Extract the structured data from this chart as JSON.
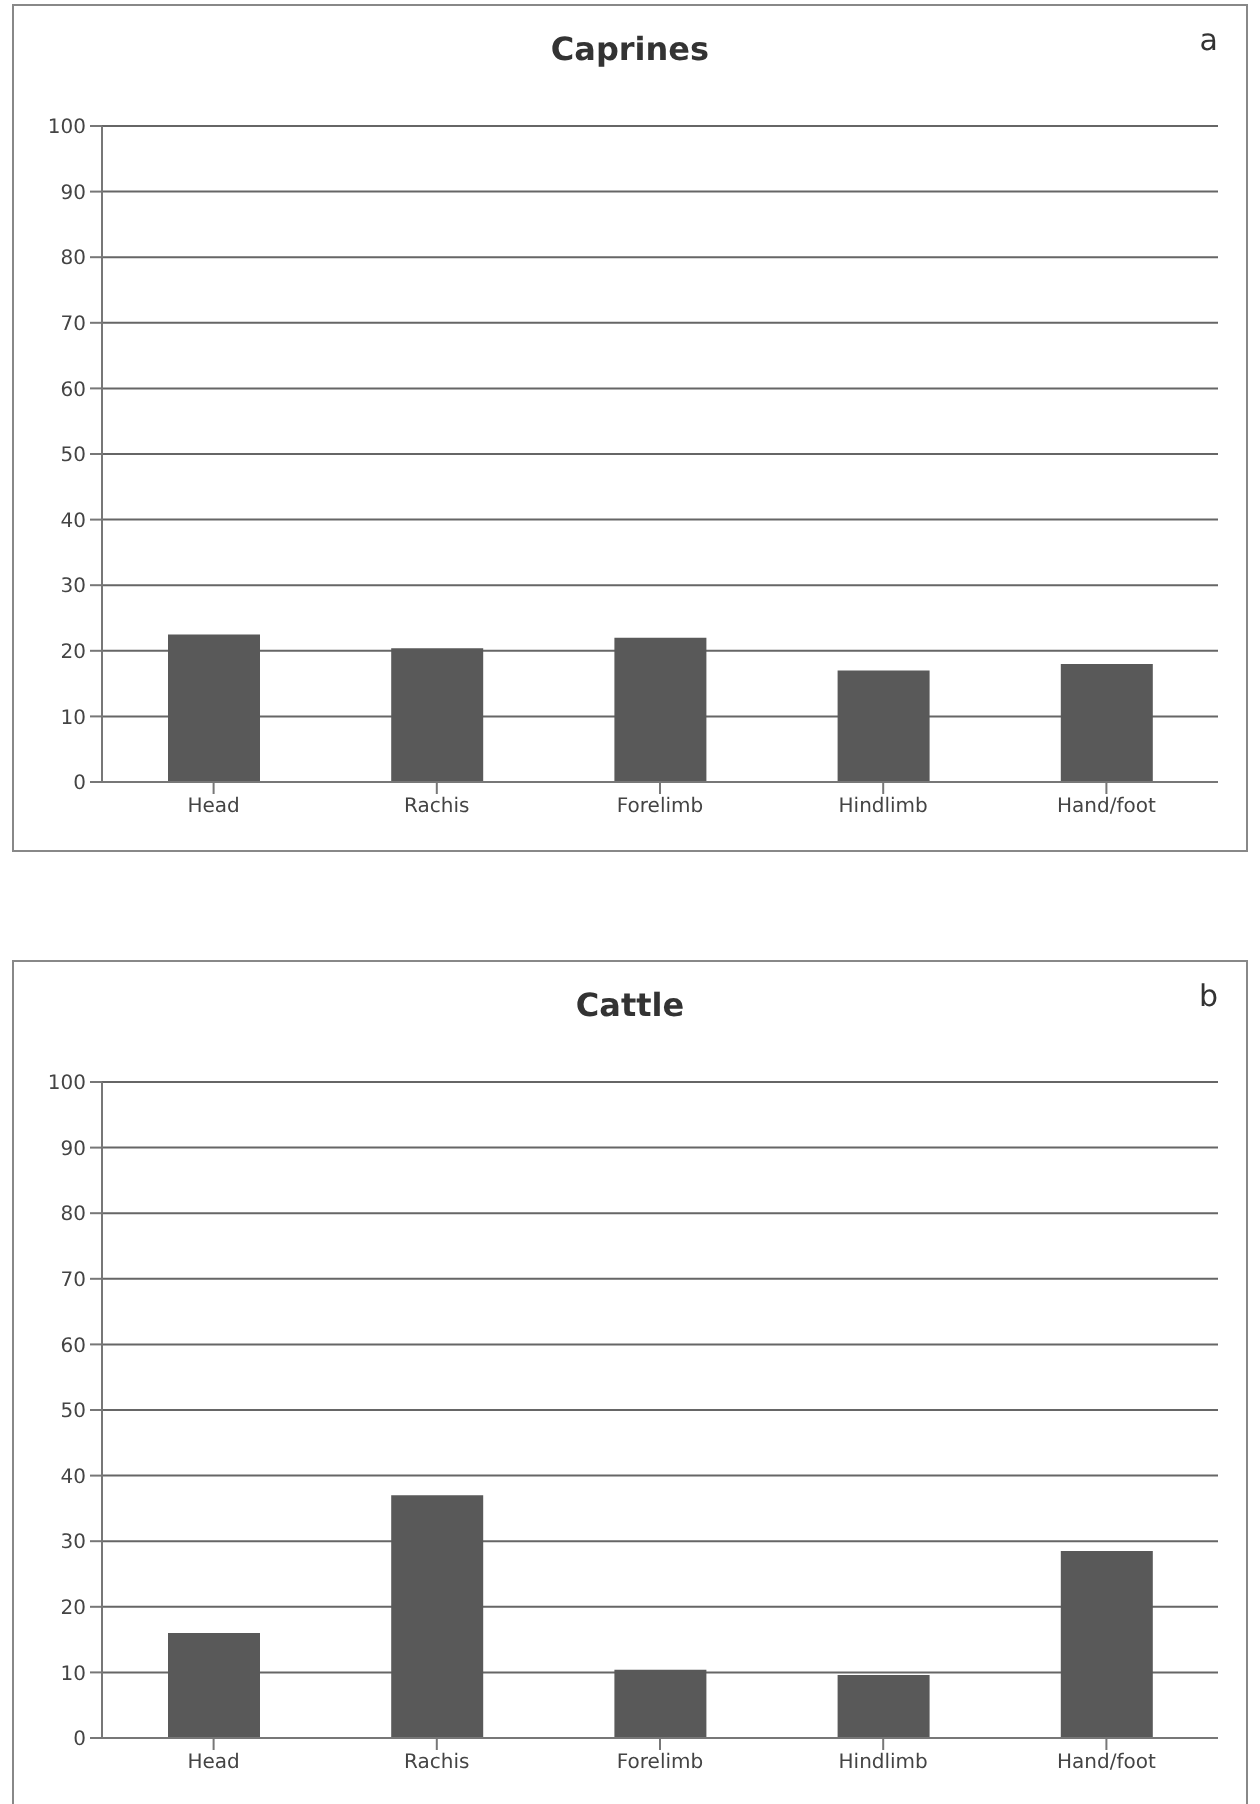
{
  "chart_data": [
    {
      "type": "bar",
      "title": "Caprines",
      "annotations": [
        "a"
      ],
      "categories": [
        "Head",
        "Rachis",
        "Forelimb",
        "Hindlimb",
        "Hand/foot"
      ],
      "values": [
        22.5,
        20.4,
        22,
        17,
        18
      ],
      "color": "#595959",
      "ylim": [
        0,
        100
      ],
      "yticks": [
        0,
        10,
        20,
        30,
        40,
        50,
        60,
        70,
        80,
        90,
        100
      ],
      "grid": "y"
    },
    {
      "type": "bar",
      "title": "Cattle",
      "annotations": [
        "b"
      ],
      "categories": [
        "Head",
        "Rachis",
        "Forelimb",
        "Hindlimb",
        "Hand/foot"
      ],
      "values": [
        16,
        37,
        10.4,
        9.6,
        28.5
      ],
      "color": "#595959",
      "ylim": [
        0,
        100
      ],
      "yticks": [
        0,
        10,
        20,
        30,
        40,
        50,
        60,
        70,
        80,
        90,
        100
      ],
      "grid": "y"
    }
  ]
}
